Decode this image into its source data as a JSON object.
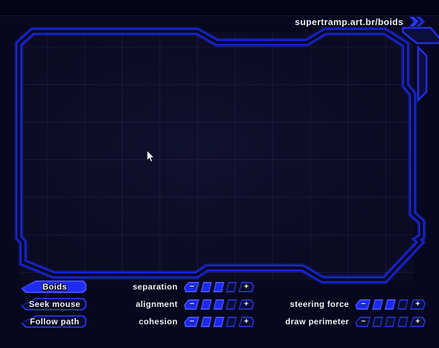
{
  "page": {
    "url_label": "supertramp.art.br/boids"
  },
  "colors": {
    "background": "#07071e",
    "frame_blue": "#1726e8",
    "accent_lit": "#1f2bf2",
    "accent_rim": "#4350ff",
    "outline_blue": "#2333da",
    "text": "#f3f3fb"
  },
  "icons": {
    "url_chevron": "double-chevron-right",
    "minus_glyph": "−",
    "plus_glyph": "+"
  },
  "modes": {
    "items": [
      {
        "label": "Boids",
        "active": true
      },
      {
        "label": "Seek mouse",
        "active": false
      },
      {
        "label": "Follow path",
        "active": false
      }
    ]
  },
  "sliders": {
    "left": [
      {
        "label": "separation",
        "value": 2,
        "max": 3
      },
      {
        "label": "alignment",
        "value": 2,
        "max": 3
      },
      {
        "label": "cohesion",
        "value": 2,
        "max": 3
      }
    ],
    "right": [
      {
        "label": "steering force",
        "value": 2,
        "max": 3
      },
      {
        "label": "draw perimeter",
        "value": 0,
        "max": 3
      }
    ]
  }
}
